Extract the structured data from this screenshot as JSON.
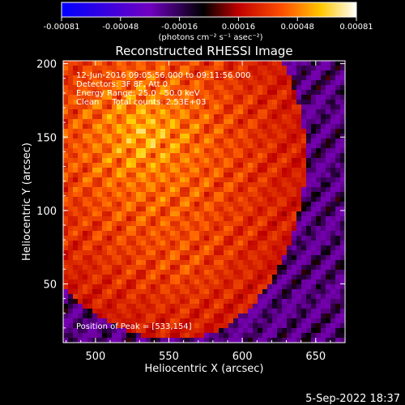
{
  "colorbar": {
    "tick_labels": [
      "-0.00081",
      "-0.00048",
      "-0.00016",
      "0.00016",
      "0.00048",
      "0.00081"
    ],
    "units": "(photons cm⁻² s⁻¹ asec⁻²)"
  },
  "plot": {
    "title": "Reconstructed RHESSI Image",
    "annotations": [
      "12-Jun-2016 09:05:56.000 to 09:11:56.000",
      "Detectors: 3F 8F, Att 0",
      "Energy Range: 25.0 - 50.0 keV",
      "Clean     Total counts: 2.53E+03"
    ],
    "peak_label": "Position of Peak = [533,154]"
  },
  "footer": {
    "date_label": "5-Sep-2022 18:37"
  },
  "colors": {
    "background": "#000000",
    "text": "#ffffff",
    "colormap": [
      "#0000ff",
      "#8000c0",
      "#000000",
      "#c00000",
      "#ff6000",
      "#ffd000",
      "#ffffff"
    ]
  },
  "chart_data": {
    "type": "heatmap",
    "title": "Reconstructed RHESSI Image",
    "xlabel": "Heliocentric X (arcsec)",
    "ylabel": "Heliocentric Y (arcsec)",
    "xlim": [
      478,
      670
    ],
    "ylim": [
      10,
      202
    ],
    "xticks": [
      500,
      550,
      600,
      650
    ],
    "yticks": [
      50,
      100,
      150,
      200
    ],
    "colorbar_range": [
      -0.00081,
      0.00081
    ],
    "colormap": "blue-black-red-yellow-white",
    "peak_position": [
      533,
      154
    ],
    "grid": false
  }
}
